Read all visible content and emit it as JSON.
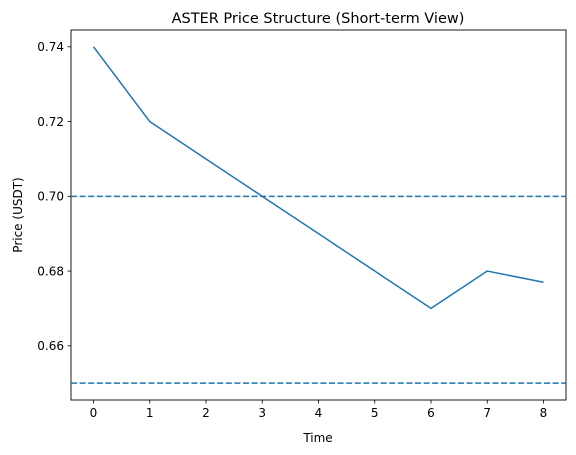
{
  "chart_data": {
    "type": "line",
    "title": "ASTER Price Structure (Short-term View)",
    "xlabel": "Time",
    "ylabel": "Price (USDT)",
    "x": [
      0,
      1,
      2,
      3,
      4,
      5,
      6,
      7,
      8
    ],
    "series": [
      {
        "values": [
          0.74,
          0.72,
          0.71,
          0.7,
          0.69,
          0.68,
          0.67,
          0.68,
          0.677
        ],
        "color": "#1f77b4"
      }
    ],
    "hlines": [
      {
        "y": 0.7,
        "style": "dashed",
        "color": "#1f77b4"
      },
      {
        "y": 0.65,
        "style": "dashed",
        "color": "#1f77b4"
      }
    ],
    "xlim": [
      -0.4,
      8.4
    ],
    "ylim": [
      0.6455,
      0.7445
    ],
    "xticks": [
      0,
      1,
      2,
      3,
      4,
      5,
      6,
      7,
      8
    ],
    "yticks": [
      0.66,
      0.68,
      0.7,
      0.72,
      0.74
    ],
    "ytick_labels": [
      "0.66",
      "0.68",
      "0.70",
      "0.72",
      "0.74"
    ],
    "grid": false
  }
}
